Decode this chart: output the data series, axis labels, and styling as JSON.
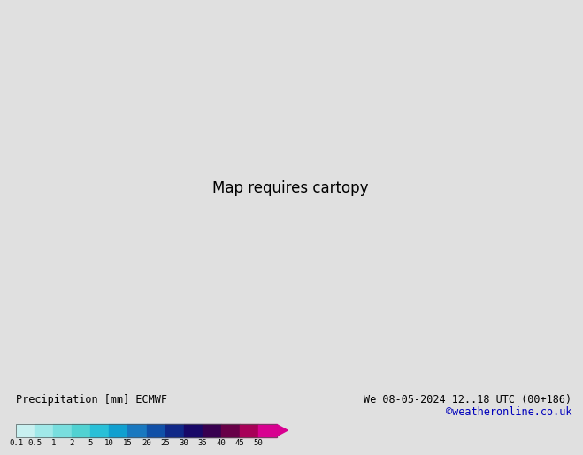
{
  "title_left": "Precipitation [mm] ECMWF",
  "title_right": "We 08-05-2024 12..18 UTC (00+186)",
  "credit": "©weatheronline.co.uk",
  "colorbar_labels": [
    "0.1",
    "0.5",
    "1",
    "2",
    "5",
    "10",
    "15",
    "20",
    "25",
    "30",
    "35",
    "40",
    "45",
    "50"
  ],
  "colorbar_colors": [
    "#c8f0f0",
    "#a0e8e8",
    "#78dede",
    "#50d2d2",
    "#28c0d8",
    "#10a0d0",
    "#1878c0",
    "#1050a8",
    "#102888",
    "#180868",
    "#380050",
    "#680048",
    "#a80058",
    "#d80090"
  ],
  "bg_color": "#e0e0e0",
  "land_color_green": "#b8d890",
  "land_color_light": "#c8dca8",
  "ocean_color": "#f0f0f0",
  "sea_color": "#e8e8e8",
  "font_color_left": "#000000",
  "font_color_right": "#000000",
  "credit_color": "#0000bb",
  "map_extent": [
    -30,
    45,
    25,
    72
  ],
  "precip_light": "#b0e8f0",
  "precip_med": "#70c8e0",
  "precip_heavy": "#2888c8",
  "precip_vheavy": "#0040a0"
}
